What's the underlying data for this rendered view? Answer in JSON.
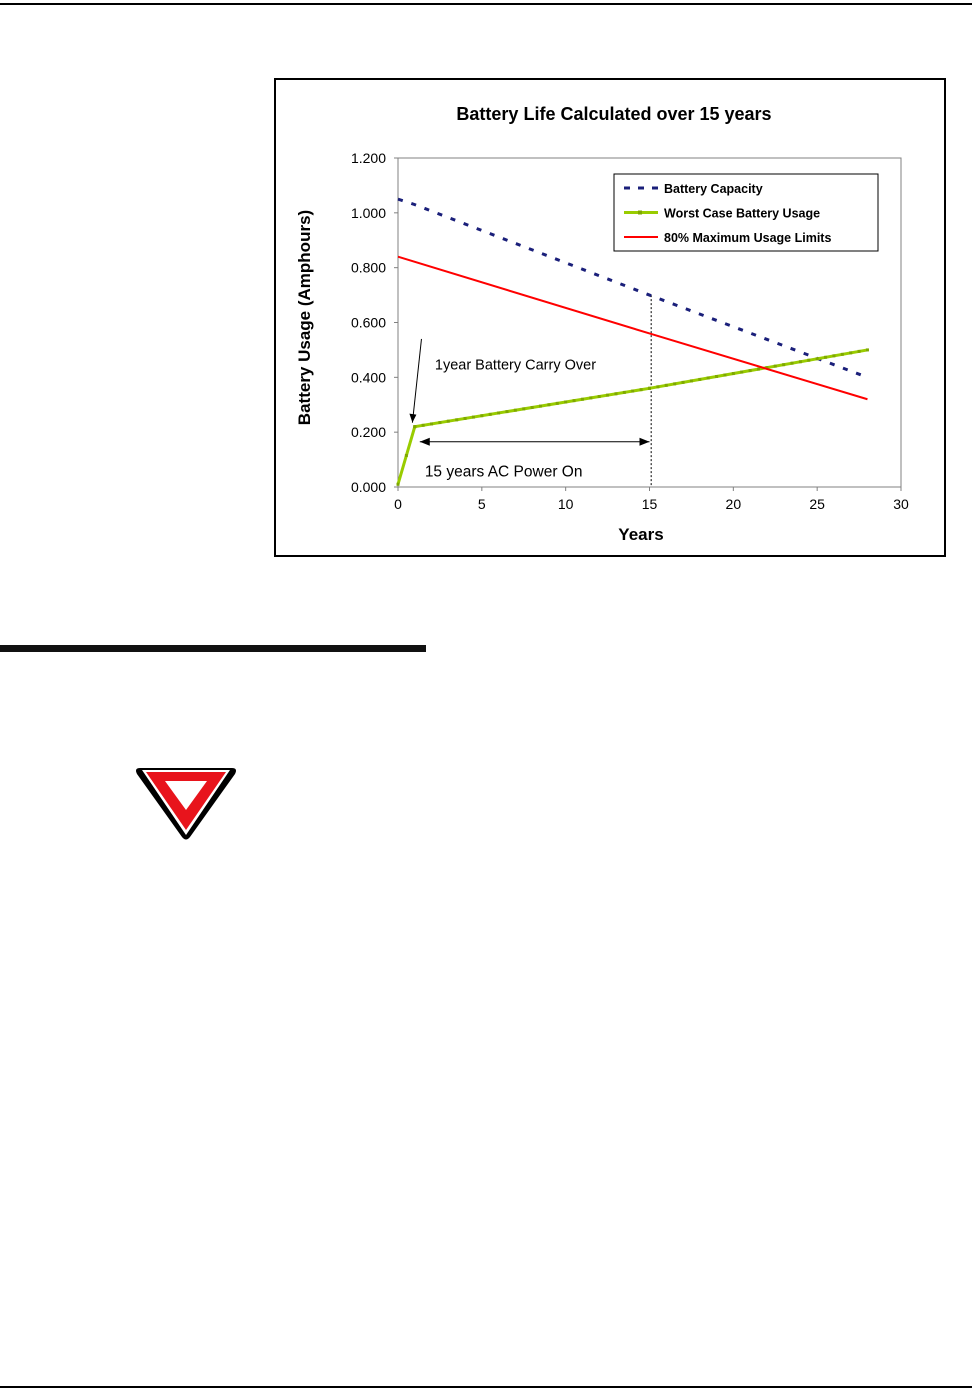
{
  "chart_data": {
    "type": "line",
    "title": "Battery Life Calculated over 15 years",
    "xlabel": "Years",
    "ylabel": "Battery Usage (Amphours)",
    "xlim": [
      0,
      30
    ],
    "ylim": [
      0,
      1.2
    ],
    "x_ticks": [
      "0",
      "5",
      "10",
      "15",
      "20",
      "25",
      "30"
    ],
    "y_ticks": [
      "0.000",
      "0.200",
      "0.400",
      "0.600",
      "0.800",
      "1.000",
      "1.200"
    ],
    "grid": false,
    "legend_position": "top-right",
    "series": [
      {
        "name": "Battery Capacity",
        "color": "#1a1f7a",
        "style": "dashed",
        "points": [
          [
            0,
            1.05
          ],
          [
            1,
            1.03
          ],
          [
            15,
            0.7
          ],
          [
            28,
            0.4
          ]
        ]
      },
      {
        "name": "Worst Case Battery Usage",
        "color": "#99cc00",
        "style": "solid-markers",
        "points": [
          [
            0,
            0.01
          ],
          [
            1,
            0.22
          ],
          [
            15,
            0.36
          ],
          [
            28,
            0.5
          ]
        ]
      },
      {
        "name": "80% Maximum Usage Limits",
        "color": "#ff0000",
        "style": "solid",
        "points": [
          [
            0,
            0.84
          ],
          [
            15,
            0.56
          ],
          [
            28,
            0.32
          ]
        ]
      }
    ],
    "annotations": [
      {
        "text": "1year Battery Carry Over",
        "anchor": [
          2.2,
          0.45
        ],
        "arrow_to": [
          0.8,
          0.22
        ]
      },
      {
        "text": "15 years AC Power On",
        "anchor": [
          1.6,
          0.06
        ],
        "span": [
          1.3,
          15.0
        ],
        "at_y": 0.165
      }
    ],
    "reference_lines": [
      {
        "x": 15.1,
        "style": "dashed"
      }
    ]
  },
  "colors": {
    "yield_red": "#e8141c",
    "yield_border": "#000000",
    "rule": "#000000"
  }
}
